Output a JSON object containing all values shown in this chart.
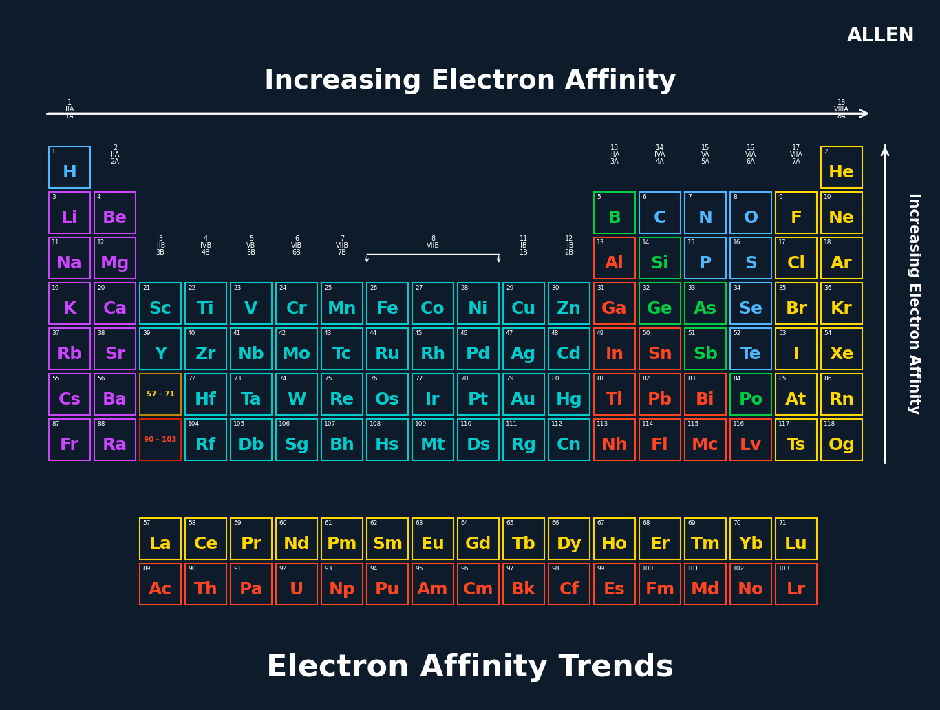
{
  "background_color": "#0d1b2a",
  "title_top": "Increasing Electron Affinity",
  "title_bottom": "Electron Affinity Trends",
  "side_label": "Increasing Electron Affinity",
  "allen_text": "ALLEN",
  "elements": [
    {
      "symbol": "H",
      "number": 1,
      "row": 1,
      "col": 1,
      "color": "#4db8ff",
      "border": "#4db8ff"
    },
    {
      "symbol": "He",
      "number": 2,
      "row": 1,
      "col": 18,
      "color": "#ffd700",
      "border": "#ffd700"
    },
    {
      "symbol": "Li",
      "number": 3,
      "row": 2,
      "col": 1,
      "color": "#cc44ff",
      "border": "#cc44ff"
    },
    {
      "symbol": "Be",
      "number": 4,
      "row": 2,
      "col": 2,
      "color": "#cc44ff",
      "border": "#cc44ff"
    },
    {
      "symbol": "B",
      "number": 5,
      "row": 2,
      "col": 13,
      "color": "#00cc44",
      "border": "#00cc44"
    },
    {
      "symbol": "C",
      "number": 6,
      "row": 2,
      "col": 14,
      "color": "#4db8ff",
      "border": "#4db8ff"
    },
    {
      "symbol": "N",
      "number": 7,
      "row": 2,
      "col": 15,
      "color": "#4db8ff",
      "border": "#4db8ff"
    },
    {
      "symbol": "O",
      "number": 8,
      "row": 2,
      "col": 16,
      "color": "#4db8ff",
      "border": "#4db8ff"
    },
    {
      "symbol": "F",
      "number": 9,
      "row": 2,
      "col": 17,
      "color": "#ffd700",
      "border": "#ffd700"
    },
    {
      "symbol": "Ne",
      "number": 10,
      "row": 2,
      "col": 18,
      "color": "#ffd700",
      "border": "#ffd700"
    },
    {
      "symbol": "Na",
      "number": 11,
      "row": 3,
      "col": 1,
      "color": "#cc44ff",
      "border": "#cc44ff"
    },
    {
      "symbol": "Mg",
      "number": 12,
      "row": 3,
      "col": 2,
      "color": "#cc44ff",
      "border": "#cc44ff"
    },
    {
      "symbol": "Al",
      "number": 13,
      "row": 3,
      "col": 13,
      "color": "#ff4422",
      "border": "#ff4422"
    },
    {
      "symbol": "Si",
      "number": 14,
      "row": 3,
      "col": 14,
      "color": "#00cc44",
      "border": "#00cc44"
    },
    {
      "symbol": "P",
      "number": 15,
      "row": 3,
      "col": 15,
      "color": "#4db8ff",
      "border": "#4db8ff"
    },
    {
      "symbol": "S",
      "number": 16,
      "row": 3,
      "col": 16,
      "color": "#4db8ff",
      "border": "#4db8ff"
    },
    {
      "symbol": "Cl",
      "number": 17,
      "row": 3,
      "col": 17,
      "color": "#ffd700",
      "border": "#ffd700"
    },
    {
      "symbol": "Ar",
      "number": 18,
      "row": 3,
      "col": 18,
      "color": "#ffd700",
      "border": "#ffd700"
    },
    {
      "symbol": "K",
      "number": 19,
      "row": 4,
      "col": 1,
      "color": "#cc44ff",
      "border": "#cc44ff"
    },
    {
      "symbol": "Ca",
      "number": 20,
      "row": 4,
      "col": 2,
      "color": "#cc44ff",
      "border": "#cc44ff"
    },
    {
      "symbol": "Sc",
      "number": 21,
      "row": 4,
      "col": 3,
      "color": "#00cccc",
      "border": "#00cccc"
    },
    {
      "symbol": "Ti",
      "number": 22,
      "row": 4,
      "col": 4,
      "color": "#00cccc",
      "border": "#00cccc"
    },
    {
      "symbol": "V",
      "number": 23,
      "row": 4,
      "col": 5,
      "color": "#00cccc",
      "border": "#00cccc"
    },
    {
      "symbol": "Cr",
      "number": 24,
      "row": 4,
      "col": 6,
      "color": "#00cccc",
      "border": "#00cccc"
    },
    {
      "symbol": "Mn",
      "number": 25,
      "row": 4,
      "col": 7,
      "color": "#00cccc",
      "border": "#00cccc"
    },
    {
      "symbol": "Fe",
      "number": 26,
      "row": 4,
      "col": 8,
      "color": "#00cccc",
      "border": "#00cccc"
    },
    {
      "symbol": "Co",
      "number": 27,
      "row": 4,
      "col": 9,
      "color": "#00cccc",
      "border": "#00cccc"
    },
    {
      "symbol": "Ni",
      "number": 28,
      "row": 4,
      "col": 10,
      "color": "#00cccc",
      "border": "#00cccc"
    },
    {
      "symbol": "Cu",
      "number": 29,
      "row": 4,
      "col": 11,
      "color": "#00cccc",
      "border": "#00cccc"
    },
    {
      "symbol": "Zn",
      "number": 30,
      "row": 4,
      "col": 12,
      "color": "#00cccc",
      "border": "#00cccc"
    },
    {
      "symbol": "Ga",
      "number": 31,
      "row": 4,
      "col": 13,
      "color": "#ff4422",
      "border": "#ff4422"
    },
    {
      "symbol": "Ge",
      "number": 32,
      "row": 4,
      "col": 14,
      "color": "#00cc44",
      "border": "#00cc44"
    },
    {
      "symbol": "As",
      "number": 33,
      "row": 4,
      "col": 15,
      "color": "#00cc44",
      "border": "#00cc44"
    },
    {
      "symbol": "Se",
      "number": 34,
      "row": 4,
      "col": 16,
      "color": "#4db8ff",
      "border": "#4db8ff"
    },
    {
      "symbol": "Br",
      "number": 35,
      "row": 4,
      "col": 17,
      "color": "#ffd700",
      "border": "#ffd700"
    },
    {
      "symbol": "Kr",
      "number": 36,
      "row": 4,
      "col": 18,
      "color": "#ffd700",
      "border": "#ffd700"
    },
    {
      "symbol": "Rb",
      "number": 37,
      "row": 5,
      "col": 1,
      "color": "#cc44ff",
      "border": "#cc44ff"
    },
    {
      "symbol": "Sr",
      "number": 38,
      "row": 5,
      "col": 2,
      "color": "#cc44ff",
      "border": "#cc44ff"
    },
    {
      "symbol": "Y",
      "number": 39,
      "row": 5,
      "col": 3,
      "color": "#00cccc",
      "border": "#00cccc"
    },
    {
      "symbol": "Zr",
      "number": 40,
      "row": 5,
      "col": 4,
      "color": "#00cccc",
      "border": "#00cccc"
    },
    {
      "symbol": "Nb",
      "number": 41,
      "row": 5,
      "col": 5,
      "color": "#00cccc",
      "border": "#00cccc"
    },
    {
      "symbol": "Mo",
      "number": 42,
      "row": 5,
      "col": 6,
      "color": "#00cccc",
      "border": "#00cccc"
    },
    {
      "symbol": "Tc",
      "number": 43,
      "row": 5,
      "col": 7,
      "color": "#00cccc",
      "border": "#00cccc"
    },
    {
      "symbol": "Ru",
      "number": 44,
      "row": 5,
      "col": 8,
      "color": "#00cccc",
      "border": "#00cccc"
    },
    {
      "symbol": "Rh",
      "number": 45,
      "row": 5,
      "col": 9,
      "color": "#00cccc",
      "border": "#00cccc"
    },
    {
      "symbol": "Pd",
      "number": 46,
      "row": 5,
      "col": 10,
      "color": "#00cccc",
      "border": "#00cccc"
    },
    {
      "symbol": "Ag",
      "number": 47,
      "row": 5,
      "col": 11,
      "color": "#00cccc",
      "border": "#00cccc"
    },
    {
      "symbol": "Cd",
      "number": 48,
      "row": 5,
      "col": 12,
      "color": "#00cccc",
      "border": "#00cccc"
    },
    {
      "symbol": "In",
      "number": 49,
      "row": 5,
      "col": 13,
      "color": "#ff4422",
      "border": "#ff4422"
    },
    {
      "symbol": "Sn",
      "number": 50,
      "row": 5,
      "col": 14,
      "color": "#ff4422",
      "border": "#ff4422"
    },
    {
      "symbol": "Sb",
      "number": 51,
      "row": 5,
      "col": 15,
      "color": "#00cc44",
      "border": "#00cc44"
    },
    {
      "symbol": "Te",
      "number": 52,
      "row": 5,
      "col": 16,
      "color": "#4db8ff",
      "border": "#4db8ff"
    },
    {
      "symbol": "I",
      "number": 53,
      "row": 5,
      "col": 17,
      "color": "#ffd700",
      "border": "#ffd700"
    },
    {
      "symbol": "Xe",
      "number": 54,
      "row": 5,
      "col": 18,
      "color": "#ffd700",
      "border": "#ffd700"
    },
    {
      "symbol": "Cs",
      "number": 55,
      "row": 6,
      "col": 1,
      "color": "#cc44ff",
      "border": "#cc44ff"
    },
    {
      "symbol": "Ba",
      "number": 56,
      "row": 6,
      "col": 2,
      "color": "#cc44ff",
      "border": "#cc44ff"
    },
    {
      "symbol": "Hf",
      "number": 72,
      "row": 6,
      "col": 4,
      "color": "#00cccc",
      "border": "#00cccc"
    },
    {
      "symbol": "Ta",
      "number": 73,
      "row": 6,
      "col": 5,
      "color": "#00cccc",
      "border": "#00cccc"
    },
    {
      "symbol": "W",
      "number": 74,
      "row": 6,
      "col": 6,
      "color": "#00cccc",
      "border": "#00cccc"
    },
    {
      "symbol": "Re",
      "number": 75,
      "row": 6,
      "col": 7,
      "color": "#00cccc",
      "border": "#00cccc"
    },
    {
      "symbol": "Os",
      "number": 76,
      "row": 6,
      "col": 8,
      "color": "#00cccc",
      "border": "#00cccc"
    },
    {
      "symbol": "Ir",
      "number": 77,
      "row": 6,
      "col": 9,
      "color": "#00cccc",
      "border": "#00cccc"
    },
    {
      "symbol": "Pt",
      "number": 78,
      "row": 6,
      "col": 10,
      "color": "#00cccc",
      "border": "#00cccc"
    },
    {
      "symbol": "Au",
      "number": 79,
      "row": 6,
      "col": 11,
      "color": "#00cccc",
      "border": "#00cccc"
    },
    {
      "symbol": "Hg",
      "number": 80,
      "row": 6,
      "col": 12,
      "color": "#00cccc",
      "border": "#00cccc"
    },
    {
      "symbol": "Tl",
      "number": 81,
      "row": 6,
      "col": 13,
      "color": "#ff4422",
      "border": "#ff4422"
    },
    {
      "symbol": "Pb",
      "number": 82,
      "row": 6,
      "col": 14,
      "color": "#ff4422",
      "border": "#ff4422"
    },
    {
      "symbol": "Bi",
      "number": 83,
      "row": 6,
      "col": 15,
      "color": "#ff4422",
      "border": "#ff4422"
    },
    {
      "symbol": "Po",
      "number": 84,
      "row": 6,
      "col": 16,
      "color": "#00cc44",
      "border": "#00cc44"
    },
    {
      "symbol": "At",
      "number": 85,
      "row": 6,
      "col": 17,
      "color": "#ffd700",
      "border": "#ffd700"
    },
    {
      "symbol": "Rn",
      "number": 86,
      "row": 6,
      "col": 18,
      "color": "#ffd700",
      "border": "#ffd700"
    },
    {
      "symbol": "Fr",
      "number": 87,
      "row": 7,
      "col": 1,
      "color": "#cc44ff",
      "border": "#cc44ff"
    },
    {
      "symbol": "Ra",
      "number": 88,
      "row": 7,
      "col": 2,
      "color": "#cc44ff",
      "border": "#cc44ff"
    },
    {
      "symbol": "Rf",
      "number": 104,
      "row": 7,
      "col": 4,
      "color": "#00cccc",
      "border": "#00cccc"
    },
    {
      "symbol": "Db",
      "number": 105,
      "row": 7,
      "col": 5,
      "color": "#00cccc",
      "border": "#00cccc"
    },
    {
      "symbol": "Sg",
      "number": 106,
      "row": 7,
      "col": 6,
      "color": "#00cccc",
      "border": "#00cccc"
    },
    {
      "symbol": "Bh",
      "number": 107,
      "row": 7,
      "col": 7,
      "color": "#00cccc",
      "border": "#00cccc"
    },
    {
      "symbol": "Hs",
      "number": 108,
      "row": 7,
      "col": 8,
      "color": "#00cccc",
      "border": "#00cccc"
    },
    {
      "symbol": "Mt",
      "number": 109,
      "row": 7,
      "col": 9,
      "color": "#00cccc",
      "border": "#00cccc"
    },
    {
      "symbol": "Ds",
      "number": 110,
      "row": 7,
      "col": 10,
      "color": "#00cccc",
      "border": "#00cccc"
    },
    {
      "symbol": "Rg",
      "number": 111,
      "row": 7,
      "col": 11,
      "color": "#00cccc",
      "border": "#00cccc"
    },
    {
      "symbol": "Cn",
      "number": 112,
      "row": 7,
      "col": 12,
      "color": "#00cccc",
      "border": "#00cccc"
    },
    {
      "symbol": "Nh",
      "number": 113,
      "row": 7,
      "col": 13,
      "color": "#ff4422",
      "border": "#ff4422"
    },
    {
      "symbol": "Fl",
      "number": 114,
      "row": 7,
      "col": 14,
      "color": "#ff4422",
      "border": "#ff4422"
    },
    {
      "symbol": "Mc",
      "number": 115,
      "row": 7,
      "col": 15,
      "color": "#ff4422",
      "border": "#ff4422"
    },
    {
      "symbol": "Lv",
      "number": 116,
      "row": 7,
      "col": 16,
      "color": "#ff4422",
      "border": "#ff4422"
    },
    {
      "symbol": "Ts",
      "number": 117,
      "row": 7,
      "col": 17,
      "color": "#ffd700",
      "border": "#ffd700"
    },
    {
      "symbol": "Og",
      "number": 118,
      "row": 7,
      "col": 18,
      "color": "#ffd700",
      "border": "#ffd700"
    },
    {
      "symbol": "La",
      "number": 57,
      "row": 9,
      "col": 3,
      "color": "#ffd700",
      "border": "#ffd700"
    },
    {
      "symbol": "Ce",
      "number": 58,
      "row": 9,
      "col": 4,
      "color": "#ffd700",
      "border": "#ffd700"
    },
    {
      "symbol": "Pr",
      "number": 59,
      "row": 9,
      "col": 5,
      "color": "#ffd700",
      "border": "#ffd700"
    },
    {
      "symbol": "Nd",
      "number": 60,
      "row": 9,
      "col": 6,
      "color": "#ffd700",
      "border": "#ffd700"
    },
    {
      "symbol": "Pm",
      "number": 61,
      "row": 9,
      "col": 7,
      "color": "#ffd700",
      "border": "#ffd700"
    },
    {
      "symbol": "Sm",
      "number": 62,
      "row": 9,
      "col": 8,
      "color": "#ffd700",
      "border": "#ffd700"
    },
    {
      "symbol": "Eu",
      "number": 63,
      "row": 9,
      "col": 9,
      "color": "#ffd700",
      "border": "#ffd700"
    },
    {
      "symbol": "Gd",
      "number": 64,
      "row": 9,
      "col": 10,
      "color": "#ffd700",
      "border": "#ffd700"
    },
    {
      "symbol": "Tb",
      "number": 65,
      "row": 9,
      "col": 11,
      "color": "#ffd700",
      "border": "#ffd700"
    },
    {
      "symbol": "Dy",
      "number": 66,
      "row": 9,
      "col": 12,
      "color": "#ffd700",
      "border": "#ffd700"
    },
    {
      "symbol": "Ho",
      "number": 67,
      "row": 9,
      "col": 13,
      "color": "#ffd700",
      "border": "#ffd700"
    },
    {
      "symbol": "Er",
      "number": 68,
      "row": 9,
      "col": 14,
      "color": "#ffd700",
      "border": "#ffd700"
    },
    {
      "symbol": "Tm",
      "number": 69,
      "row": 9,
      "col": 15,
      "color": "#ffd700",
      "border": "#ffd700"
    },
    {
      "symbol": "Yb",
      "number": 70,
      "row": 9,
      "col": 16,
      "color": "#ffd700",
      "border": "#ffd700"
    },
    {
      "symbol": "Lu",
      "number": 71,
      "row": 9,
      "col": 17,
      "color": "#ffd700",
      "border": "#ffd700"
    },
    {
      "symbol": "Ac",
      "number": 89,
      "row": 10,
      "col": 3,
      "color": "#ff4422",
      "border": "#ff4422"
    },
    {
      "symbol": "Th",
      "number": 90,
      "row": 10,
      "col": 4,
      "color": "#ff4422",
      "border": "#ff4422"
    },
    {
      "symbol": "Pa",
      "number": 91,
      "row": 10,
      "col": 5,
      "color": "#ff4422",
      "border": "#ff4422"
    },
    {
      "symbol": "U",
      "number": 92,
      "row": 10,
      "col": 6,
      "color": "#ff4422",
      "border": "#ff4422"
    },
    {
      "symbol": "Np",
      "number": 93,
      "row": 10,
      "col": 7,
      "color": "#ff4422",
      "border": "#ff4422"
    },
    {
      "symbol": "Pu",
      "number": 94,
      "row": 10,
      "col": 8,
      "color": "#ff4422",
      "border": "#ff4422"
    },
    {
      "symbol": "Am",
      "number": 95,
      "row": 10,
      "col": 9,
      "color": "#ff4422",
      "border": "#ff4422"
    },
    {
      "symbol": "Cm",
      "number": 96,
      "row": 10,
      "col": 10,
      "color": "#ff4422",
      "border": "#ff4422"
    },
    {
      "symbol": "Bk",
      "number": 97,
      "row": 10,
      "col": 11,
      "color": "#ff4422",
      "border": "#ff4422"
    },
    {
      "symbol": "Cf",
      "number": 98,
      "row": 10,
      "col": 12,
      "color": "#ff4422",
      "border": "#ff4422"
    },
    {
      "symbol": "Es",
      "number": 99,
      "row": 10,
      "col": 13,
      "color": "#ff4422",
      "border": "#ff4422"
    },
    {
      "symbol": "Fm",
      "number": 100,
      "row": 10,
      "col": 14,
      "color": "#ff4422",
      "border": "#ff4422"
    },
    {
      "symbol": "Md",
      "number": 101,
      "row": 10,
      "col": 15,
      "color": "#ff4422",
      "border": "#ff4422"
    },
    {
      "symbol": "No",
      "number": 102,
      "row": 10,
      "col": 16,
      "color": "#ff4422",
      "border": "#ff4422"
    },
    {
      "symbol": "Lr",
      "number": 103,
      "row": 10,
      "col": 17,
      "color": "#ff4422",
      "border": "#ff4422"
    }
  ],
  "placeholder_57_71": {
    "row": 6,
    "col": 3,
    "label": "57 - 71",
    "color": "#ffd700",
    "border": "#b8860b"
  },
  "placeholder_90_103": {
    "row": 7,
    "col": 3,
    "label": "90 - 103",
    "color": "#ff4422",
    "border": "#cc2200"
  }
}
